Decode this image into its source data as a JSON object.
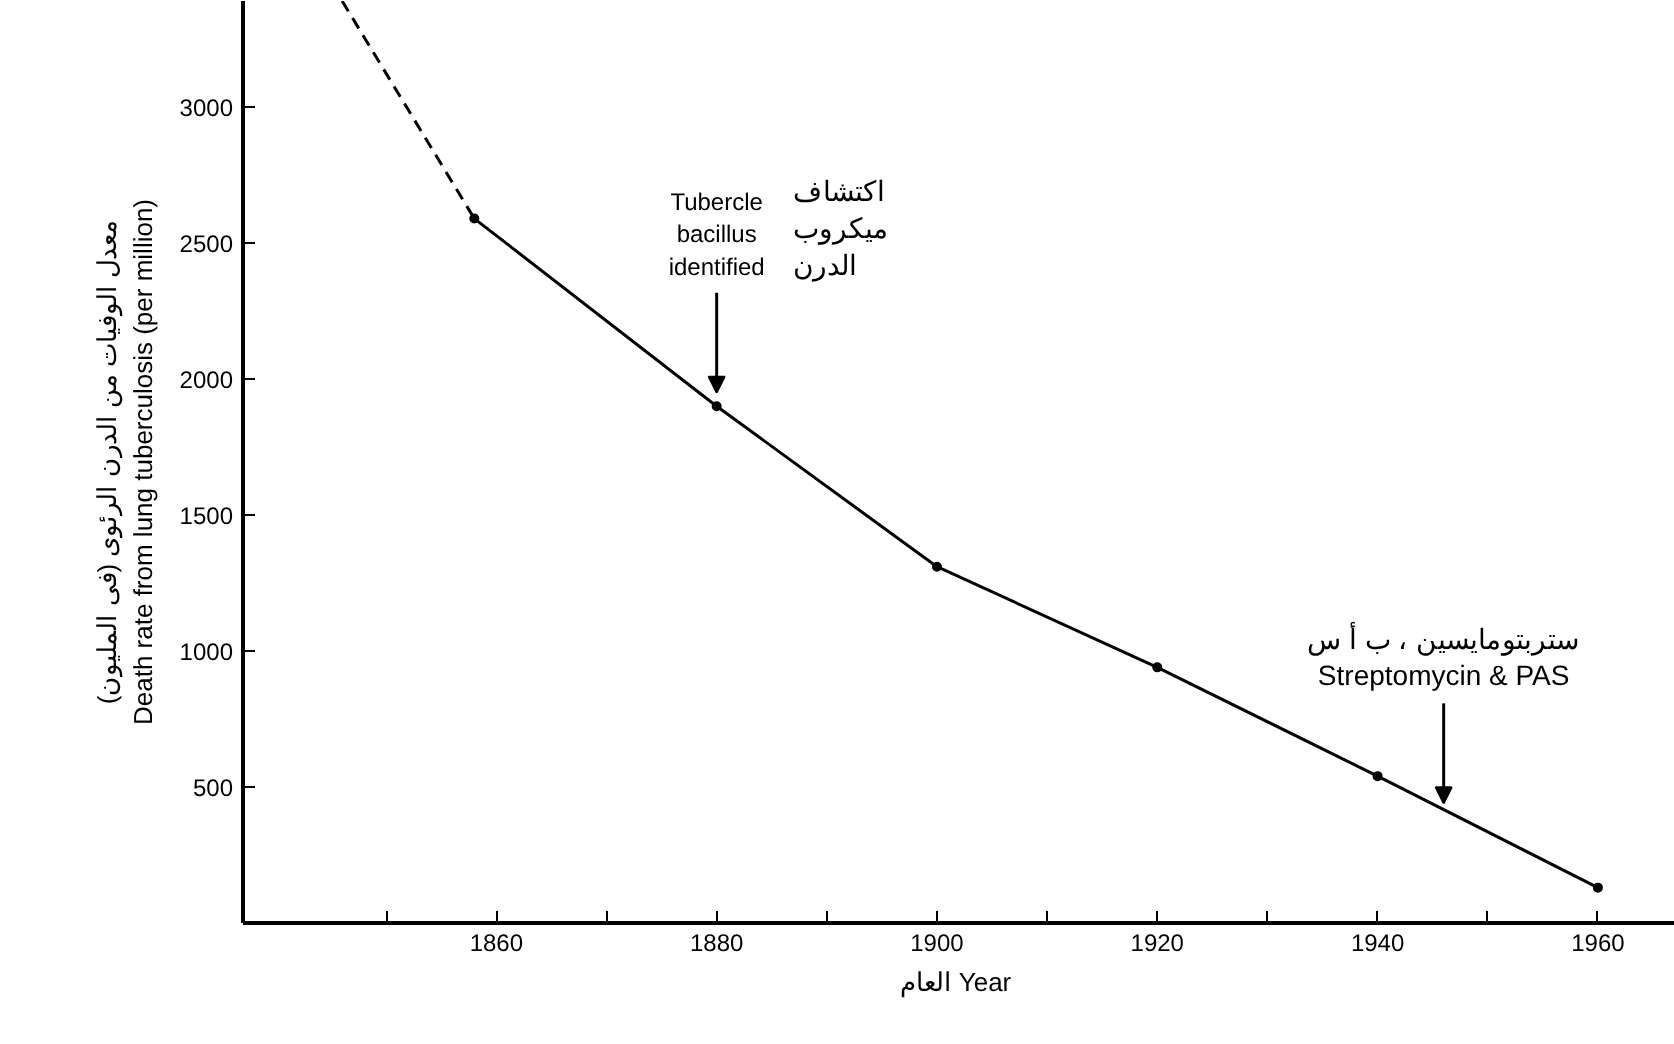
{
  "chart_data": {
    "type": "line",
    "xlabel": "العام  Year",
    "ylabel": "معدل الوفيات من الدرن الرئوى (فى المليون)\nDeath rate from lung tuberculosis (per million)",
    "xlim": [
      1837,
      1967
    ],
    "ylim": [
      0,
      3390
    ],
    "xticks": [
      {
        "value": 1850,
        "label": null
      },
      1860,
      {
        "value": 1870,
        "label": null
      },
      1880,
      {
        "value": 1890,
        "label": null
      },
      1900,
      {
        "value": 1910,
        "label": null
      },
      1920,
      {
        "value": 1930,
        "label": null
      },
      1940,
      {
        "value": 1950,
        "label": null
      },
      1960
    ],
    "yticks": [
      500,
      1000,
      1500,
      2000,
      2500,
      3000
    ],
    "grid": false,
    "series": [
      {
        "color": "#000000",
        "x": [
          1846,
          1858
        ],
        "values": [
          3390,
          2590
        ],
        "line_style": "dashed"
      },
      {
        "color": "#000000",
        "x": [
          1858,
          1880,
          1900,
          1920,
          1940,
          1960
        ],
        "values": [
          2590,
          1900,
          1310,
          940,
          540,
          130
        ],
        "line_style": "solid",
        "marker": "circle"
      }
    ],
    "annotations": [
      {
        "text": "Tubercle\nbacillus\nidentified",
        "x": 1880,
        "y": 1950
      },
      "اكتشاف\nميكروب\nالدرن",
      {
        "text": "ستربتومايسين ، ب أ س\nStreptomycin & PAS",
        "x": 1946,
        "y": 440
      }
    ]
  }
}
